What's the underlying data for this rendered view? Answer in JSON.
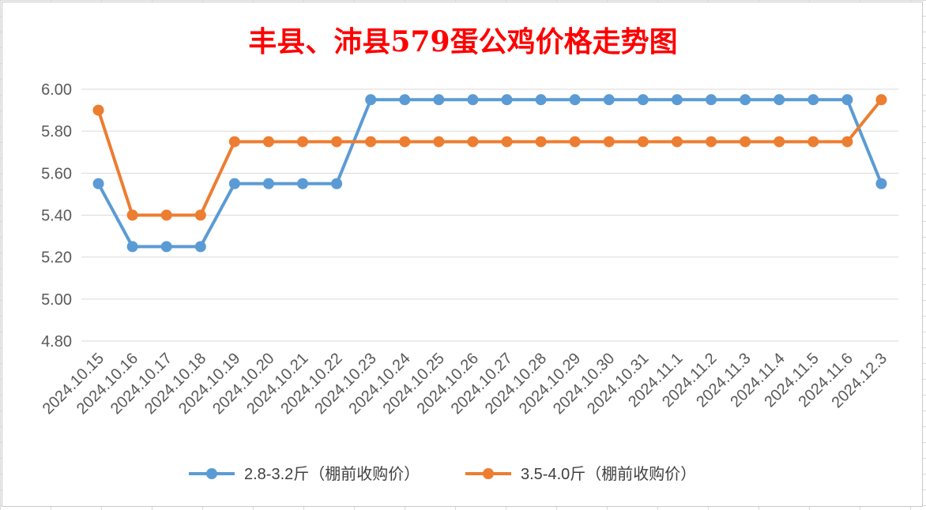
{
  "chart_data": {
    "type": "line",
    "title": "丰县、沛县579蛋公鸡价格走势图",
    "xlabel": "",
    "ylabel": "",
    "ylim": [
      4.8,
      6.0
    ],
    "yticks": [
      "4.80",
      "5.00",
      "5.20",
      "5.40",
      "5.60",
      "5.80",
      "6.00"
    ],
    "grid": true,
    "legend_position": "bottom",
    "categories": [
      "2024.10.15",
      "2024.10.16",
      "2024.10.17",
      "2024.10.18",
      "2024.10.19",
      "2024.10.20",
      "2024.10.21",
      "2024.10.22",
      "2024.10.23",
      "2024.10.24",
      "2024.10.25",
      "2024.10.26",
      "2024.10.27",
      "2024.10.28",
      "2024.10.29",
      "2024.10.30",
      "2024.10.31",
      "2024.11.1",
      "2024.11.2",
      "2024.11.3",
      "2024.11.4",
      "2024.11.5",
      "2024.11.6",
      "2024.12.3"
    ],
    "series": [
      {
        "name": "2.8-3.2斤（棚前收购价）",
        "color": "#5b9bd5",
        "values": [
          5.55,
          5.25,
          5.25,
          5.25,
          5.55,
          5.55,
          5.55,
          5.55,
          5.95,
          5.95,
          5.95,
          5.95,
          5.95,
          5.95,
          5.95,
          5.95,
          5.95,
          5.95,
          5.95,
          5.95,
          5.95,
          5.95,
          5.95,
          5.55
        ]
      },
      {
        "name": "3.5-4.0斤（棚前收购价）",
        "color": "#ed7d31",
        "values": [
          5.9,
          5.4,
          5.4,
          5.4,
          5.75,
          5.75,
          5.75,
          5.75,
          5.75,
          5.75,
          5.75,
          5.75,
          5.75,
          5.75,
          5.75,
          5.75,
          5.75,
          5.75,
          5.75,
          5.75,
          5.75,
          5.75,
          5.75,
          5.95
        ]
      }
    ]
  }
}
